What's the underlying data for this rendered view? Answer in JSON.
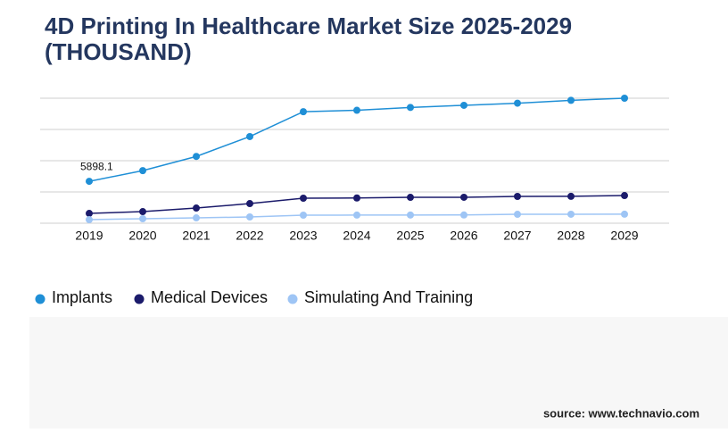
{
  "chart_data": {
    "type": "line",
    "title": "4D Printing In Healthcare Market Size 2025-2029",
    "subtitle": "(THOUSAND)",
    "categories": [
      "2019",
      "2020",
      "2021",
      "2022",
      "2023",
      "2024",
      "2025",
      "2026",
      "2027",
      "2028",
      "2029"
    ],
    "series": [
      {
        "name": "Implants",
        "color": "#1f8fd6",
        "values": [
          5898.1,
          7400,
          9400,
          12200,
          15700,
          15900,
          16300,
          16600,
          16900,
          17300,
          17600
        ],
        "value_labels": [
          "5898.1",
          null,
          null,
          null,
          null,
          null,
          null,
          null,
          null,
          null,
          null
        ]
      },
      {
        "name": "Medical Devices",
        "color": "#1b1b6b",
        "values": [
          1380,
          1630,
          2130,
          2760,
          3520,
          3550,
          3640,
          3650,
          3770,
          3780,
          3890
        ]
      },
      {
        "name": "Simulating And Training",
        "color": "#9ec5f5",
        "values": [
          500,
          630,
          750,
          880,
          1130,
          1140,
          1150,
          1160,
          1250,
          1260,
          1270
        ]
      }
    ],
    "ylim": [
      0,
      17600
    ],
    "yticks": [
      0,
      4400,
      8800,
      13200,
      17600
    ],
    "grid": true,
    "source": "source: www.technavio.com"
  }
}
